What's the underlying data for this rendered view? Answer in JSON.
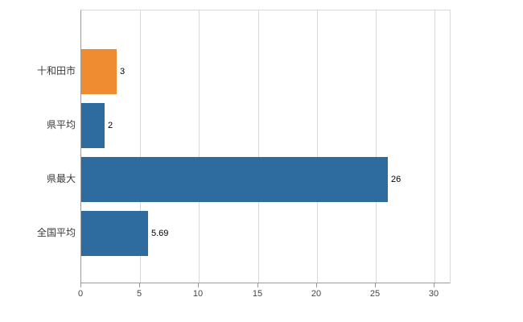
{
  "chart_data": {
    "type": "bar",
    "orientation": "horizontal",
    "title": "",
    "xlabel": "",
    "ylabel": "",
    "categories": [
      "十和田市",
      "県平均",
      "県最大",
      "全国平均"
    ],
    "values": [
      3,
      2,
      26,
      5.69
    ],
    "value_labels": [
      "3",
      "2",
      "26",
      "5.69"
    ],
    "colors": [
      "#ef8c31",
      "#2e6b9e",
      "#2e6b9e",
      "#2e6b9e"
    ],
    "x_ticks": [
      0,
      5,
      10,
      15,
      20,
      25,
      30
    ],
    "xlim": [
      0,
      31.4
    ],
    "grid": "vertical",
    "legend": "none"
  },
  "colors": {
    "background": "#ffffff",
    "grid": "#d9d9d9",
    "axis": "#9a9a9a",
    "category_label": "#3a3a3a",
    "tick_label": "#444444",
    "value_label": "#000000"
  }
}
